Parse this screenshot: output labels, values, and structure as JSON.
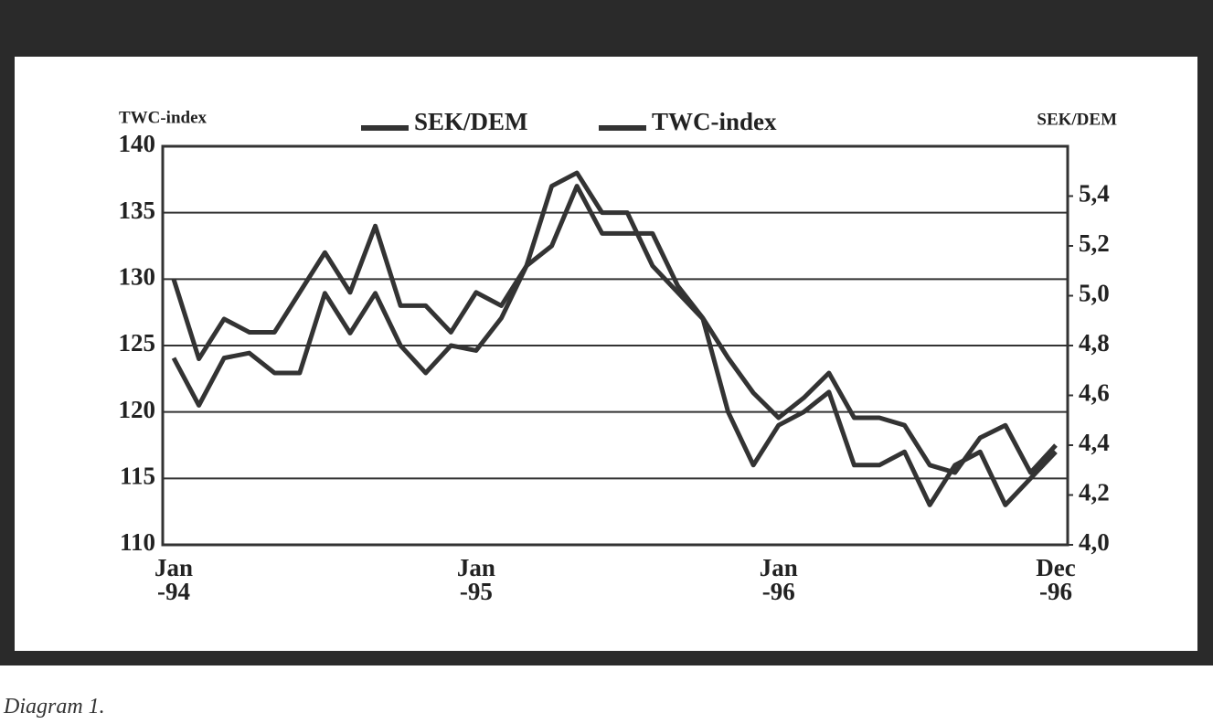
{
  "chart_data": {
    "type": "line",
    "y_label": "TWC-index",
    "y2_label": "SEK/DEM",
    "caption": "Diagram 1.",
    "categories": [
      "Jan\n-94",
      null,
      null,
      null,
      null,
      null,
      null,
      null,
      null,
      null,
      null,
      null,
      "Jan\n-95",
      null,
      null,
      null,
      null,
      null,
      null,
      null,
      null,
      null,
      null,
      null,
      "Jan\n-96",
      null,
      null,
      null,
      null,
      null,
      null,
      null,
      null,
      null,
      null,
      "Dec\n-96"
    ],
    "series": [
      {
        "name": "SEK/DEM",
        "color": "#333333",
        "axis": "y2",
        "values": [
          4.75,
          4.56,
          4.75,
          4.77,
          4.69,
          4.69,
          5.01,
          4.85,
          5.01,
          4.8,
          4.69,
          4.8,
          4.78,
          4.91,
          5.12,
          5.2,
          5.44,
          5.25,
          5.25,
          5.25,
          5.04,
          4.91,
          4.75,
          4.61,
          4.51,
          4.59,
          4.69,
          4.51,
          4.51,
          4.48,
          4.32,
          4.29,
          4.43,
          4.48,
          4.29,
          4.4
        ]
      },
      {
        "name": "TWC-index",
        "color": "#333333",
        "values": [
          130,
          124,
          127,
          126,
          126,
          129,
          132,
          129,
          134,
          128,
          128,
          126,
          129,
          128,
          131,
          137,
          138,
          135,
          135,
          131,
          129,
          127,
          120,
          116,
          119,
          120,
          121.5,
          116,
          116,
          117,
          113,
          116,
          117,
          113,
          115,
          117
        ]
      }
    ],
    "ylim": [
      110,
      140
    ],
    "yticks": [
      110,
      115,
      120,
      125,
      130,
      135,
      140
    ],
    "y2lim": [
      4.0,
      5.6
    ],
    "y2ticks": [
      {
        "value": 4.0,
        "label": "4,0"
      },
      {
        "value": 4.2,
        "label": "4,2"
      },
      {
        "value": 4.4,
        "label": "4,4"
      },
      {
        "value": 4.6,
        "label": "4,6"
      },
      {
        "value": 4.8,
        "label": "4,8"
      },
      {
        "value": 5.0,
        "label": "5,0"
      },
      {
        "value": 5.2,
        "label": "5,2"
      },
      {
        "value": 5.4,
        "label": "5,4"
      }
    ],
    "grid": true
  }
}
